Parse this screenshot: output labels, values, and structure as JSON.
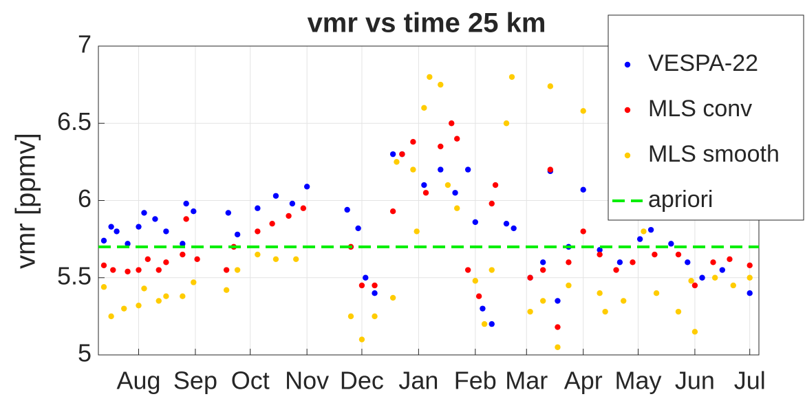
{
  "chart_data": {
    "type": "scatter",
    "title": "vmr vs time 25 km",
    "ylabel": "vmr [ppmv]",
    "xlim": [
      9,
      370
    ],
    "ylim": [
      5,
      7
    ],
    "xticks": [
      {
        "value": 31,
        "label": "Aug"
      },
      {
        "value": 62,
        "label": "Sep"
      },
      {
        "value": 92,
        "label": "Oct"
      },
      {
        "value": 123,
        "label": "Nov"
      },
      {
        "value": 153,
        "label": "Dec"
      },
      {
        "value": 184,
        "label": "Jan"
      },
      {
        "value": 215,
        "label": "Feb"
      },
      {
        "value": 243,
        "label": "Mar"
      },
      {
        "value": 274,
        "label": "Apr"
      },
      {
        "value": 304,
        "label": "May"
      },
      {
        "value": 335,
        "label": "Jun"
      },
      {
        "value": 365,
        "label": "Jul"
      }
    ],
    "yticks": [
      5,
      5.5,
      6,
      6.5,
      7
    ],
    "grid": true,
    "legend": "upper right",
    "series": [
      {
        "name": "VESPA-22",
        "color": "#0000ff",
        "style": "points",
        "x": [
          12,
          16,
          19,
          25,
          31,
          34,
          40,
          46,
          55,
          57,
          61,
          80,
          85,
          96,
          106,
          115,
          123,
          145,
          151,
          155,
          160,
          170,
          175,
          187,
          196,
          204,
          211,
          215,
          219,
          224,
          232,
          236,
          245,
          252,
          256,
          260,
          266,
          274,
          283,
          294,
          305,
          311,
          322,
          331,
          339,
          350,
          365
        ],
        "values": [
          5.74,
          5.83,
          5.8,
          5.72,
          5.83,
          5.92,
          5.88,
          5.8,
          5.72,
          5.98,
          5.93,
          5.92,
          5.78,
          5.95,
          6.03,
          5.98,
          6.09,
          5.94,
          5.82,
          5.5,
          5.4,
          6.3,
          6.3,
          6.1,
          6.2,
          6.05,
          6.2,
          5.86,
          5.3,
          5.2,
          5.85,
          5.82,
          5.5,
          5.6,
          6.19,
          5.35,
          5.7,
          6.07,
          5.68,
          5.6,
          5.75,
          5.81,
          5.72,
          5.6,
          5.5,
          5.55,
          5.4
        ]
      },
      {
        "name": "MLS conv",
        "color": "#ff0000",
        "style": "points",
        "x": [
          12,
          17,
          25,
          31,
          36,
          42,
          46,
          55,
          57,
          63,
          79,
          83,
          96,
          104,
          113,
          121,
          147,
          153,
          160,
          170,
          175,
          181,
          188,
          196,
          202,
          205,
          211,
          217,
          224,
          226,
          245,
          252,
          256,
          260,
          266,
          274,
          283,
          292,
          301,
          313,
          326,
          335,
          345,
          354,
          365
        ],
        "values": [
          5.58,
          5.55,
          5.54,
          5.55,
          5.62,
          5.55,
          5.6,
          5.65,
          5.88,
          5.62,
          5.55,
          5.7,
          5.8,
          5.85,
          5.9,
          5.95,
          5.7,
          5.45,
          5.45,
          5.93,
          6.3,
          6.38,
          6.05,
          6.35,
          6.5,
          6.4,
          5.55,
          5.38,
          5.98,
          6.1,
          5.5,
          5.55,
          6.2,
          5.18,
          5.6,
          5.8,
          5.65,
          5.55,
          5.6,
          5.65,
          5.65,
          5.45,
          5.6,
          5.62,
          5.58
        ]
      },
      {
        "name": "MLS smooth",
        "color": "#ffcc00",
        "style": "points",
        "x": [
          12,
          16,
          23,
          31,
          34,
          42,
          46,
          55,
          61,
          79,
          85,
          96,
          106,
          117,
          147,
          153,
          160,
          170,
          172,
          181,
          183,
          187,
          190,
          196,
          200,
          205,
          215,
          220,
          224,
          232,
          235,
          245,
          252,
          256,
          260,
          266,
          274,
          283,
          286,
          296,
          307,
          314,
          326,
          333,
          335,
          346,
          356,
          365
        ],
        "values": [
          5.44,
          5.25,
          5.3,
          5.32,
          5.43,
          5.35,
          5.38,
          5.38,
          5.47,
          5.42,
          5.55,
          5.65,
          5.62,
          5.62,
          5.25,
          5.1,
          5.25,
          5.37,
          6.25,
          6.2,
          5.8,
          6.6,
          6.8,
          6.75,
          6.1,
          5.95,
          5.48,
          5.2,
          5.55,
          6.5,
          6.8,
          5.28,
          5.35,
          6.74,
          5.05,
          5.45,
          6.58,
          5.4,
          5.28,
          5.35,
          5.8,
          5.4,
          5.28,
          5.48,
          5.15,
          5.5,
          5.45,
          5.5
        ]
      },
      {
        "name": "apriori",
        "color": "#00ee00",
        "style": "dashed",
        "x": [
          9,
          370
        ],
        "values": [
          5.7,
          5.7
        ]
      }
    ]
  }
}
